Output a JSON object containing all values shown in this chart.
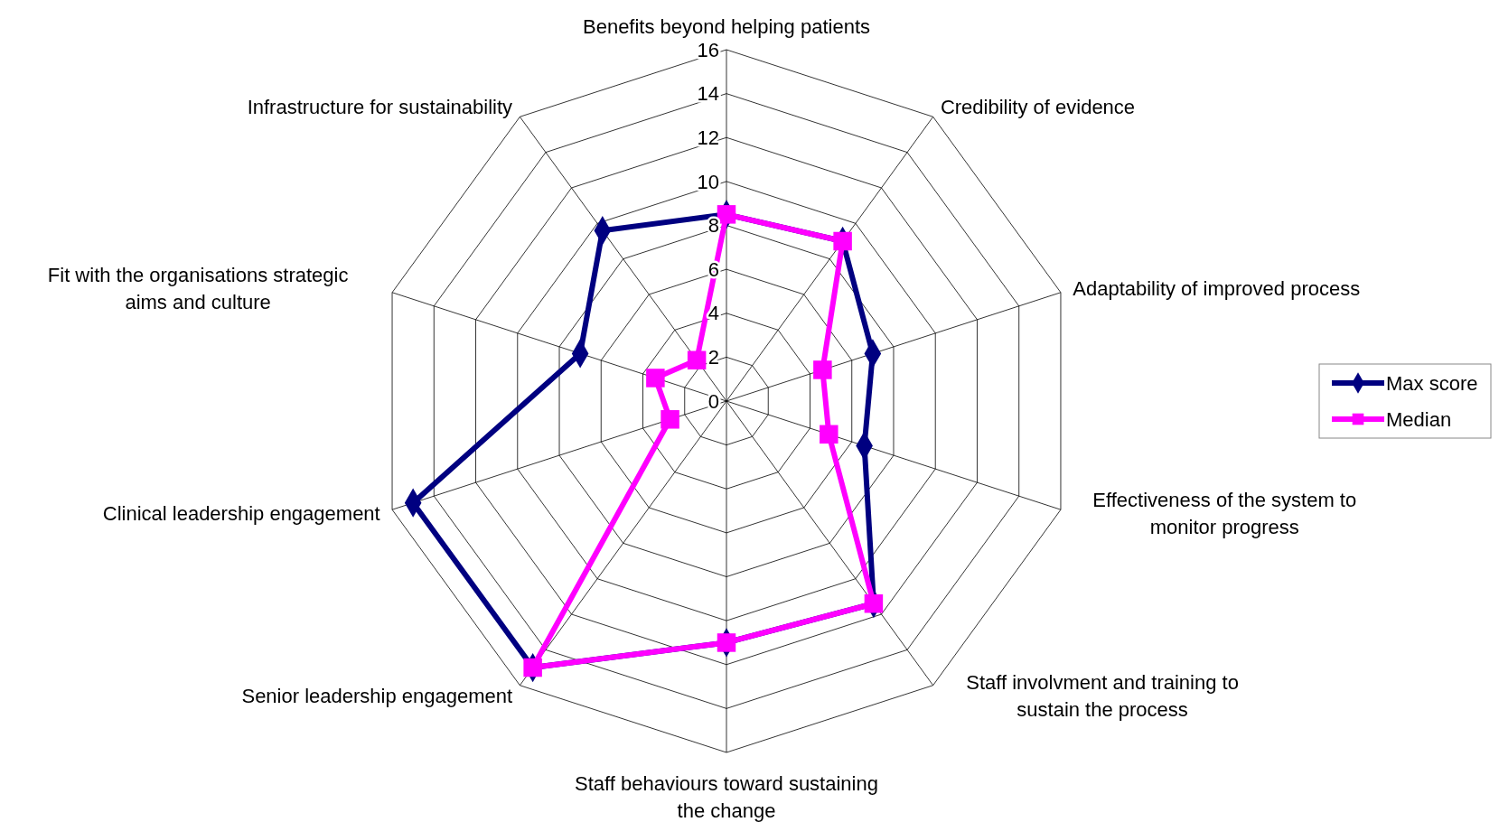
{
  "chart_data": {
    "type": "radar",
    "categories": [
      "Benefits beyond helping patients",
      "Credibility of evidence",
      "Adaptability of improved process",
      "Effectiveness of the system to monitor progress",
      "Staff involvment and training to sustain the process",
      "Staff behaviours toward sustaining the change",
      "Senior leadership engagement",
      "Clinical leadership engagement",
      "Fit with the organisations strategic aims and culture",
      "Infrastructure for sustainability"
    ],
    "series": [
      {
        "name": "Max score",
        "color": "#000080",
        "marker": "diamond",
        "values": [
          8.5,
          9.0,
          7.0,
          6.6,
          11.4,
          11.0,
          15.0,
          15.0,
          7.0,
          9.6
        ]
      },
      {
        "name": "Median",
        "color": "#ff00ff",
        "marker": "square",
        "values": [
          8.5,
          9.0,
          4.6,
          4.9,
          11.4,
          11.0,
          15.0,
          2.7,
          3.4,
          2.3
        ]
      }
    ],
    "ylim": [
      0,
      16
    ],
    "yticks": [
      0,
      2,
      4,
      6,
      8,
      10,
      12,
      14,
      16
    ],
    "grid": true,
    "legend": "right"
  }
}
